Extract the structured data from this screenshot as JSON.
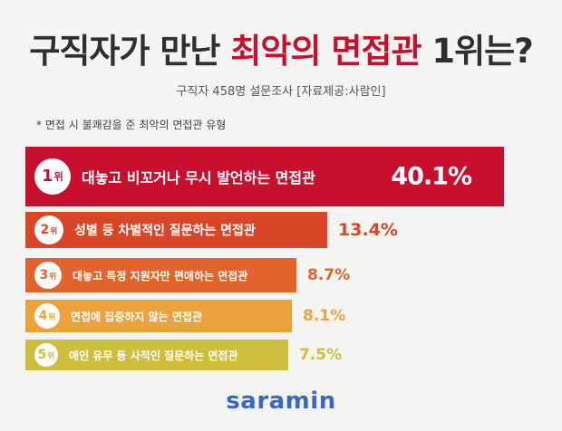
{
  "header": {
    "title_prefix": "구직자가 만난 ",
    "title_highlight": "최악의 면접관",
    "title_suffix": " 1위는?",
    "subtitle": "구직자 458명 설문조사  [자료제공:사람인]",
    "note": "* 면접 시 불쾌감을 준 최악의 면접관 유형"
  },
  "chart_data": {
    "type": "bar",
    "orientation": "horizontal",
    "rank_suffix": "위",
    "unit": "%",
    "categories": [
      "대놓고 비꼬거나 무시 발언하는 면접관",
      "성별 등 차별적인 질문하는 면접관",
      "대놓고 특정 지원자만 편애하는 면접관",
      "면접에 집중하지 않는 면접관",
      "애인 유무 등 사적인 질문하는 면접관"
    ],
    "ranks": [
      "1",
      "2",
      "3",
      "4",
      "5"
    ],
    "values": [
      40.1,
      13.4,
      8.7,
      8.1,
      7.5
    ],
    "labels": [
      "40.1%",
      "13.4%",
      "8.7%",
      "8.1%",
      "7.5%"
    ],
    "colors": [
      "#c8102e",
      "#d94527",
      "#e2642c",
      "#eca23c",
      "#cdbf3d"
    ]
  },
  "brand": {
    "logo": "saramin"
  }
}
